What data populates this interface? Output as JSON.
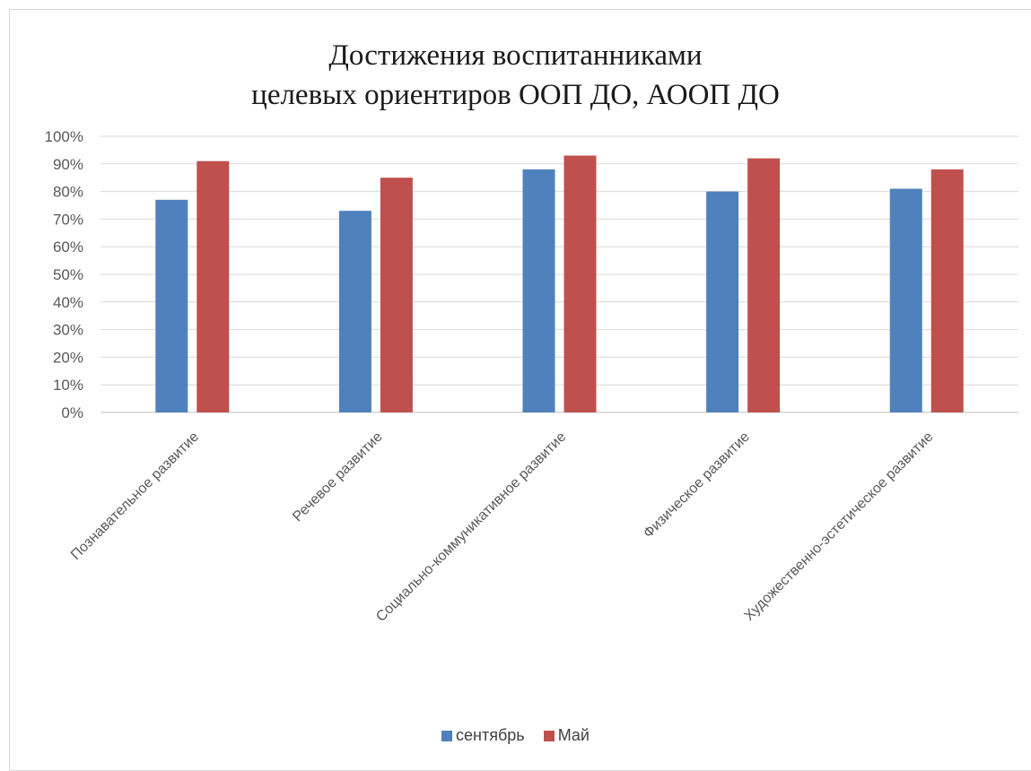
{
  "chart_data": {
    "type": "bar",
    "title": "Достижения воспитанниками целевых ориентиров ООП ДО, АООП ДО",
    "title_lines": [
      "Достижения воспитанниками",
      "целевых ориентиров ООП ДО, АООП ДО"
    ],
    "categories": [
      "Познавательное развитие",
      "Речевое развитие",
      "Социально-коммуникативное развитие",
      "Физическое развитие",
      "Художественно-эстетическое развитие"
    ],
    "series": [
      {
        "name": "сентябрь",
        "color": "#4f81bd",
        "values": [
          0.77,
          0.73,
          0.88,
          0.8,
          0.81
        ]
      },
      {
        "name": "Май",
        "color": "#c0504d",
        "values": [
          0.91,
          0.85,
          0.93,
          0.92,
          0.88
        ]
      }
    ],
    "y_ticks": [
      "0%",
      "10%",
      "20%",
      "30%",
      "40%",
      "50%",
      "60%",
      "70%",
      "80%",
      "90%",
      "100%"
    ],
    "ylim": [
      0,
      1
    ],
    "grid": true,
    "legend_position": "bottom"
  }
}
